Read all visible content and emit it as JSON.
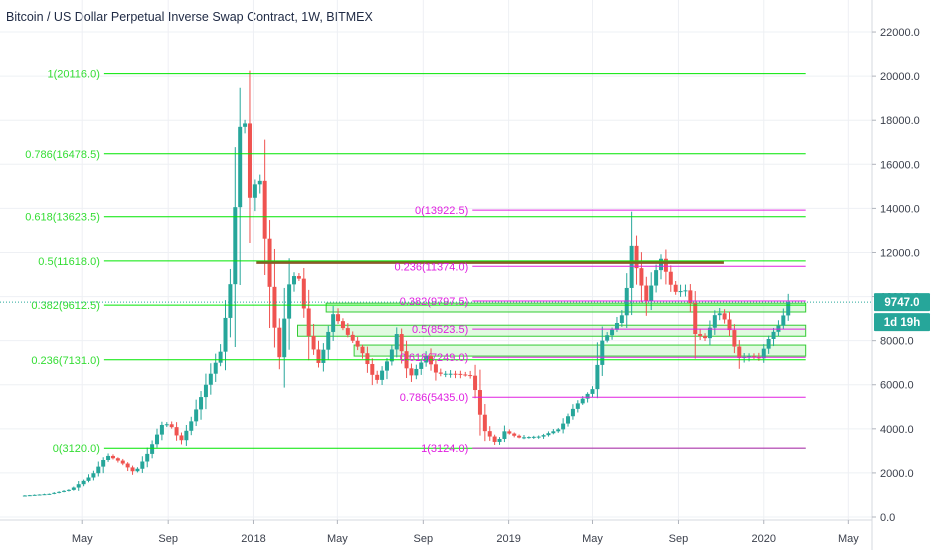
{
  "chart_data": {
    "type": "candlestick",
    "title": "Bitcoin / US Dollar Perpetual Inverse Swap Contract, 1W, BITMEX",
    "x_tick_labels": [
      "May",
      "Sep",
      "2018",
      "May",
      "Sep",
      "2019",
      "May",
      "Sep",
      "2020",
      "May"
    ],
    "x_tick_dates": [
      "2017-05",
      "2017-09",
      "2018-01",
      "2018-05",
      "2018-09",
      "2019-01",
      "2019-05",
      "2019-09",
      "2020-01",
      "2020-05"
    ],
    "x_range": [
      "2017-02",
      "2020-06"
    ],
    "y_tick_labels": [
      "0.0",
      "2000.0",
      "4000.0",
      "6000.0",
      "8000.0",
      "10000.0",
      "12000.0",
      "14000.0",
      "16000.0",
      "18000.0",
      "20000.0",
      "22000.0"
    ],
    "ylim": [
      0,
      23000
    ],
    "grid": true,
    "last_price": 9747.0,
    "last_price_label": "9747.0",
    "countdown_label": "1d 19h",
    "price_path": [
      [
        "2017-02-01",
        960
      ],
      [
        "2017-03-15",
        1050
      ],
      [
        "2017-04-15",
        1250
      ],
      [
        "2017-05-15",
        1900
      ],
      [
        "2017-06-05",
        2800
      ],
      [
        "2017-06-25",
        2500
      ],
      [
        "2017-07-15",
        2000
      ],
      [
        "2017-08-01",
        2800
      ],
      [
        "2017-08-25",
        4300
      ],
      [
        "2017-09-10",
        4000
      ],
      [
        "2017-09-17",
        3300
      ],
      [
        "2017-10-05",
        4400
      ],
      [
        "2017-10-25",
        6000
      ],
      [
        "2017-11-15",
        7500
      ],
      [
        "2017-12-01",
        11000
      ],
      [
        "2017-12-10",
        16500
      ],
      [
        "2017-12-17",
        19300
      ],
      [
        "2017-12-28",
        14000
      ],
      [
        "2018-01-08",
        16000
      ],
      [
        "2018-01-20",
        11500
      ],
      [
        "2018-02-06",
        7000
      ],
      [
        "2018-02-20",
        10500
      ],
      [
        "2018-03-05",
        11200
      ],
      [
        "2018-03-20",
        8300
      ],
      [
        "2018-04-05",
        6900
      ],
      [
        "2018-04-25",
        9200
      ],
      [
        "2018-05-15",
        8300
      ],
      [
        "2018-06-05",
        7500
      ],
      [
        "2018-06-25",
        6100
      ],
      [
        "2018-07-15",
        7300
      ],
      [
        "2018-07-25",
        8300
      ],
      [
        "2018-08-12",
        6300
      ],
      [
        "2018-09-05",
        7300
      ],
      [
        "2018-09-20",
        6500
      ],
      [
        "2018-10-15",
        6500
      ],
      [
        "2018-11-10",
        6400
      ],
      [
        "2018-11-25",
        4000
      ],
      [
        "2018-12-15",
        3300
      ],
      [
        "2018-12-25",
        3900
      ],
      [
        "2019-01-15",
        3600
      ],
      [
        "2019-02-15",
        3650
      ],
      [
        "2019-03-15",
        4000
      ],
      [
        "2019-04-05",
        5000
      ],
      [
        "2019-05-01",
        5800
      ],
      [
        "2019-05-15",
        8000
      ],
      [
        "2019-06-01",
        8600
      ],
      [
        "2019-06-15",
        9300
      ],
      [
        "2019-06-26",
        12300
      ],
      [
        "2019-07-05",
        11000
      ],
      [
        "2019-07-17",
        9800
      ],
      [
        "2019-08-06",
        11800
      ],
      [
        "2019-08-25",
        10200
      ],
      [
        "2019-09-15",
        10300
      ],
      [
        "2019-09-25",
        8300
      ],
      [
        "2019-10-10",
        8100
      ],
      [
        "2019-10-26",
        9400
      ],
      [
        "2019-11-10",
        8800
      ],
      [
        "2019-11-25",
        7200
      ],
      [
        "2019-12-10",
        7300
      ],
      [
        "2019-12-25",
        7200
      ],
      [
        "2020-01-10",
        8200
      ],
      [
        "2020-01-25",
        8800
      ],
      [
        "2020-02-05",
        9747
      ]
    ],
    "fib_green": {
      "levels": [
        {
          "label": "1(20116.0)",
          "value": 20116.0
        },
        {
          "label": "0.786(16478.5)",
          "value": 16478.5
        },
        {
          "label": "0.618(13623.5)",
          "value": 13623.5
        },
        {
          "label": "0.5(11618.0)",
          "value": 11618.0
        },
        {
          "label": "0.382(9612.5)",
          "value": 9612.5
        },
        {
          "label": "0.236(7131.0)",
          "value": 7131.0
        },
        {
          "label": "0(3120.0)",
          "value": 3120.0
        }
      ],
      "from": "2017-06-01",
      "to": "2020-03-01"
    },
    "fib_magenta": {
      "levels": [
        {
          "label": "0(13922.5)",
          "value": 13922.5
        },
        {
          "label": "0.236(11374.0)",
          "value": 11374.0
        },
        {
          "label": "0.382(9797.5)",
          "value": 9797.5
        },
        {
          "label": "0.5(8523.5)",
          "value": 8523.5
        },
        {
          "label": "0.618(7249.0)",
          "value": 7249.0
        },
        {
          "label": "0.786(5435.0)",
          "value": 5435.0
        },
        {
          "label": "1(3124.0)",
          "value": 3124.0
        }
      ],
      "from": "2018-11-10",
      "to": "2020-03-01"
    },
    "horizontal_line": {
      "value": 11550,
      "from": "2018-01-05",
      "to": "2019-11-05",
      "color": "#8b5a2b"
    },
    "zones": [
      {
        "from": "2018-04-15",
        "to": "2020-03-01",
        "low": 9300,
        "high": 9700
      },
      {
        "from": "2018-03-05",
        "to": "2020-03-01",
        "low": 8200,
        "high": 8700
      },
      {
        "from": "2018-05-25",
        "to": "2020-03-01",
        "low": 7300,
        "high": 7800
      }
    ],
    "colors": {
      "up": "#26a69a",
      "down": "#ef5350",
      "fib_green": "#00e600",
      "fib_green_text": "#33dd33",
      "fib_magenta": "#e020e0",
      "zone_fill": "#c8f5c8",
      "zone_border": "#33cc33",
      "price_tag": "#26a69a",
      "price_line": "#26a69a"
    }
  }
}
